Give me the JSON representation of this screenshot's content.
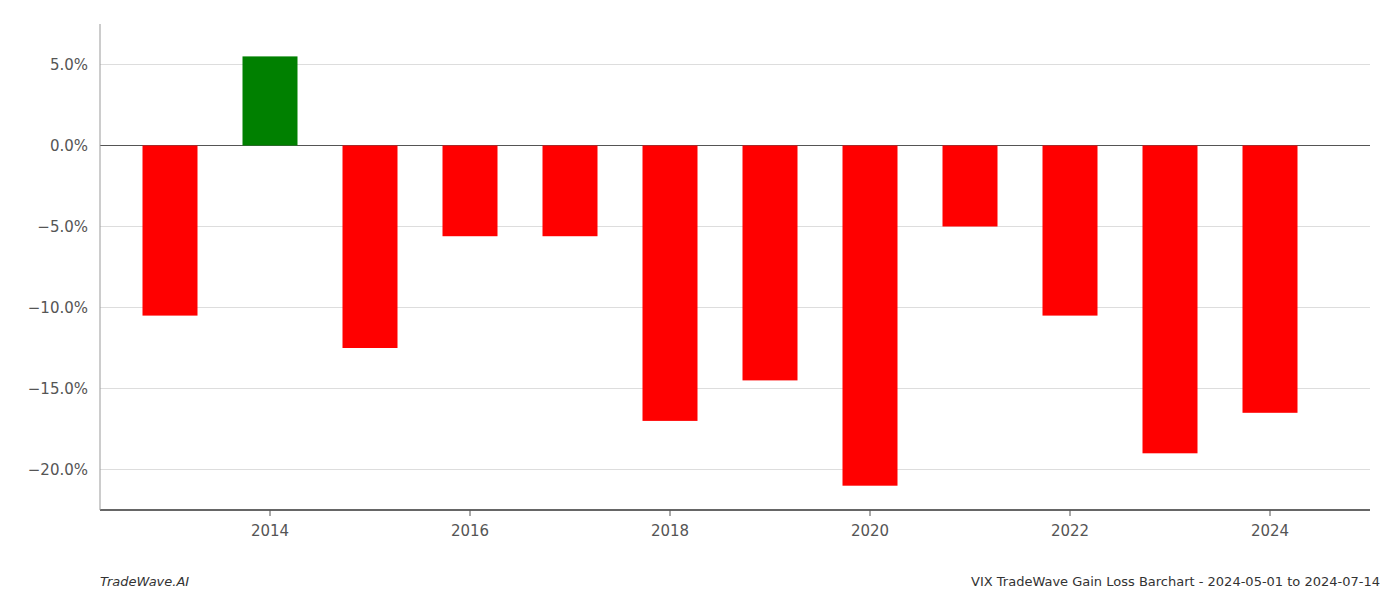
{
  "chart_data": {
    "type": "bar",
    "x": [
      2013,
      2014,
      2015,
      2016,
      2017,
      2018,
      2019,
      2020,
      2021,
      2022,
      2023,
      2024
    ],
    "values": [
      -0.105,
      0.055,
      -0.125,
      -0.056,
      -0.056,
      -0.17,
      -0.145,
      -0.21,
      -0.05,
      -0.105,
      -0.19,
      -0.165
    ],
    "colors": [
      "#ff0000",
      "#008000",
      "#ff0000",
      "#ff0000",
      "#ff0000",
      "#ff0000",
      "#ff0000",
      "#ff0000",
      "#ff0000",
      "#ff0000",
      "#ff0000",
      "#ff0000"
    ],
    "xlim": [
      2012.3,
      2025.0
    ],
    "xticks": [
      2014,
      2016,
      2018,
      2020,
      2022,
      2024
    ],
    "ylim": [
      -0.225,
      0.075
    ],
    "yticks": [
      {
        "value": 0.05,
        "label": "5.0%"
      },
      {
        "value": 0.0,
        "label": "0.0%"
      },
      {
        "value": -0.05,
        "label": "−5.0%"
      },
      {
        "value": -0.1,
        "label": "−10.0%"
      },
      {
        "value": -0.15,
        "label": "−15.0%"
      },
      {
        "value": -0.2,
        "label": "−20.0%"
      }
    ],
    "grid": true,
    "annotations": [
      "TradeWave.AI",
      "VIX TradeWave Gain Loss Barchart - 2024-05-01 to 2024-07-14"
    ]
  }
}
